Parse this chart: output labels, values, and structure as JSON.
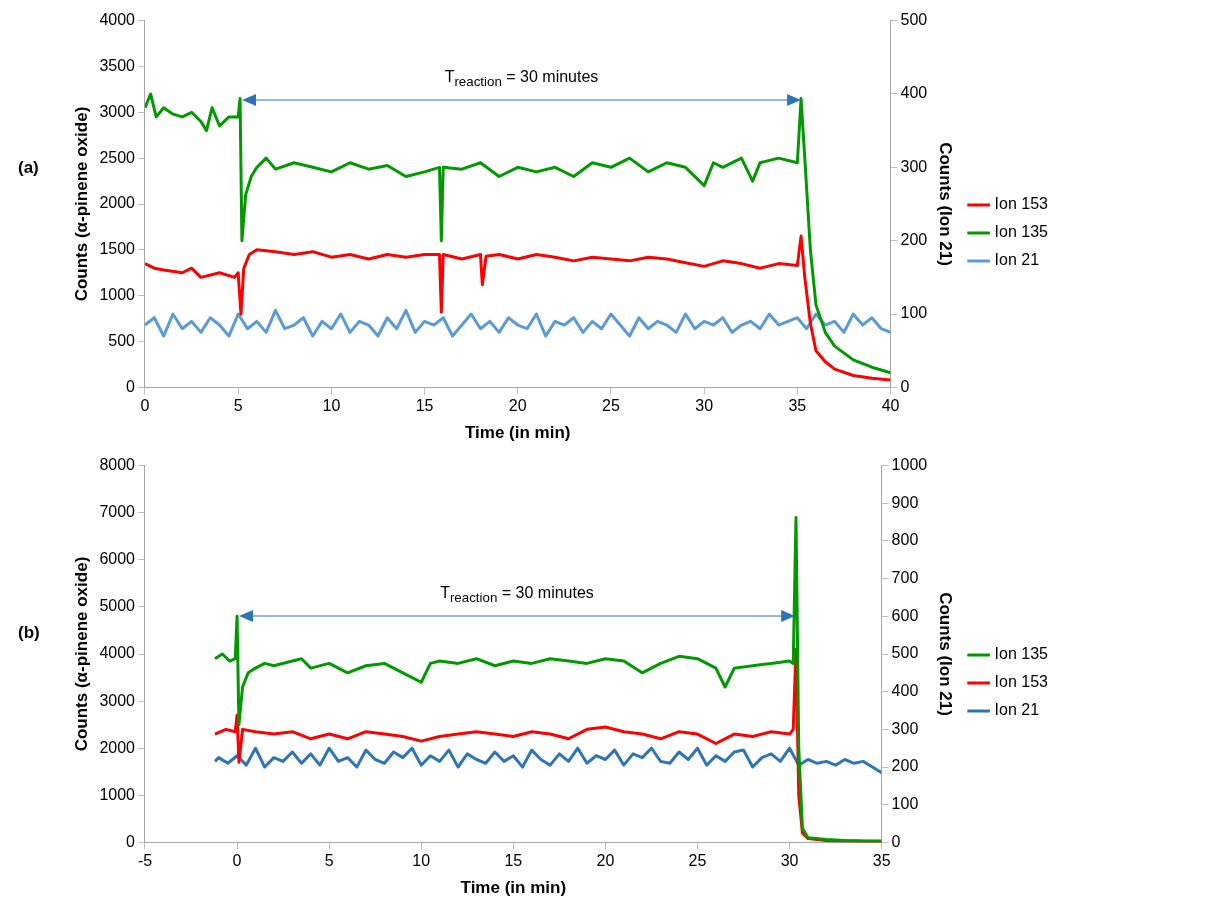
{
  "chart_data": [
    {
      "type": "line",
      "title": "(a)",
      "xlabel": "Time (in min)",
      "ylabel": "Counts (α-pinene oxide)",
      "y2label": "Counts (Ion 21)",
      "xlim": [
        0,
        40
      ],
      "xticks": [
        0,
        5,
        10,
        15,
        20,
        25,
        30,
        35,
        40
      ],
      "ylim": [
        0,
        4000
      ],
      "yticks": [
        0,
        500,
        1000,
        1500,
        2000,
        2500,
        3000,
        3500,
        4000
      ],
      "y2lim": [
        0,
        500
      ],
      "y2ticks": [
        0,
        100,
        200,
        300,
        400,
        500
      ],
      "legend": "right",
      "marker": "none",
      "annotations": [
        "T$_{reaction}$ = 30 minutes"
      ],
      "series": [
        {
          "name": "Ion 153",
          "color": "#ff0000",
          "x": [
            0,
            0.5,
            1,
            2,
            2.5,
            3,
            4,
            4.8,
            5,
            5.15,
            5.3,
            5.6,
            6,
            7,
            8,
            9,
            10,
            11,
            12,
            13,
            14,
            15,
            15.8,
            15.9,
            16,
            17,
            18,
            18.1,
            18.3,
            19,
            20,
            21,
            22,
            23,
            24,
            25,
            26,
            27,
            28,
            29,
            30,
            31,
            32,
            33,
            34,
            35,
            35.2,
            35.4,
            35.7,
            36,
            36.5,
            37,
            38,
            39,
            40
          ],
          "values": [
            1350,
            1300,
            1280,
            1250,
            1300,
            1200,
            1250,
            1200,
            1250,
            800,
            1300,
            1450,
            1500,
            1480,
            1450,
            1480,
            1420,
            1450,
            1400,
            1450,
            1420,
            1450,
            1450,
            820,
            1450,
            1400,
            1450,
            1120,
            1430,
            1450,
            1400,
            1450,
            1420,
            1380,
            1420,
            1400,
            1380,
            1420,
            1400,
            1360,
            1320,
            1380,
            1350,
            1300,
            1350,
            1330,
            1650,
            1200,
            700,
            400,
            280,
            200,
            130,
            100,
            80
          ]
        },
        {
          "name": "Ion 135",
          "color": "#009a00",
          "x": [
            0,
            0.3,
            0.6,
            1,
            1.5,
            2,
            2.5,
            3,
            3.3,
            3.6,
            4,
            4.5,
            5,
            5.1,
            5.2,
            5.4,
            5.7,
            6,
            6.5,
            7,
            8,
            9,
            10,
            11,
            12,
            13,
            14,
            15,
            15.8,
            15.9,
            16,
            17,
            18,
            19,
            20,
            21,
            22,
            23,
            24,
            25,
            26,
            27,
            28,
            29,
            30,
            30.5,
            31,
            32,
            32.6,
            33,
            34,
            35,
            35.2,
            35.4,
            35.7,
            36,
            36.5,
            37,
            38,
            39,
            40
          ],
          "values": [
            3050,
            3200,
            2950,
            3050,
            2980,
            2950,
            3000,
            2900,
            2800,
            3050,
            2850,
            2950,
            2950,
            3150,
            1600,
            2100,
            2300,
            2400,
            2500,
            2380,
            2450,
            2400,
            2350,
            2450,
            2380,
            2420,
            2300,
            2350,
            2400,
            1600,
            2400,
            2380,
            2450,
            2300,
            2400,
            2350,
            2400,
            2300,
            2450,
            2400,
            2500,
            2350,
            2450,
            2400,
            2200,
            2450,
            2400,
            2500,
            2250,
            2450,
            2500,
            2450,
            3150,
            2500,
            1500,
            900,
            600,
            450,
            300,
            220,
            160
          ]
        },
        {
          "name": "Ion 21",
          "color": "#5b9bd5",
          "axis": "y2",
          "x": [
            0,
            0.5,
            1,
            1.5,
            2,
            2.5,
            3,
            3.5,
            4,
            4.5,
            5,
            5.5,
            6,
            6.5,
            7,
            7.5,
            8,
            8.5,
            9,
            9.5,
            10,
            10.5,
            11,
            11.5,
            12,
            12.5,
            13,
            13.5,
            14,
            14.5,
            15,
            15.5,
            16,
            16.5,
            17,
            17.5,
            18,
            18.5,
            19,
            19.5,
            20,
            20.5,
            21,
            21.5,
            22,
            22.5,
            23,
            23.5,
            24,
            24.5,
            25,
            25.5,
            26,
            26.5,
            27,
            27.5,
            28,
            28.5,
            29,
            29.5,
            30,
            30.5,
            31,
            31.5,
            32,
            32.5,
            33,
            33.5,
            34,
            34.5,
            35,
            35.5,
            36,
            36.5,
            37,
            37.5,
            38,
            38.5,
            39,
            39.5,
            40
          ],
          "values": [
            85,
            95,
            70,
            100,
            80,
            90,
            75,
            95,
            85,
            70,
            100,
            80,
            90,
            75,
            105,
            80,
            85,
            95,
            70,
            90,
            80,
            100,
            75,
            90,
            85,
            70,
            95,
            80,
            105,
            75,
            90,
            85,
            95,
            70,
            85,
            100,
            80,
            90,
            75,
            95,
            85,
            80,
            100,
            70,
            90,
            85,
            95,
            75,
            90,
            80,
            100,
            85,
            70,
            95,
            80,
            90,
            85,
            75,
            100,
            80,
            90,
            85,
            95,
            75,
            85,
            90,
            80,
            100,
            85,
            90,
            95,
            80,
            100,
            85,
            90,
            75,
            100,
            85,
            95,
            80,
            75
          ]
        }
      ]
    },
    {
      "type": "line",
      "title": "(b)",
      "xlabel": "Time (in min)",
      "ylabel": "Counts (α-pinene oxide)",
      "y2label": "Counts (Ion 21)",
      "xlim": [
        -5,
        35
      ],
      "xticks": [
        -5,
        0,
        5,
        10,
        15,
        20,
        25,
        30,
        35
      ],
      "ylim": [
        0,
        8000
      ],
      "yticks": [
        0,
        1000,
        2000,
        3000,
        4000,
        5000,
        6000,
        7000,
        8000
      ],
      "y2lim": [
        0,
        1000
      ],
      "y2ticks": [
        0,
        100,
        200,
        300,
        400,
        500,
        600,
        700,
        800,
        900,
        1000
      ],
      "legend": "right",
      "marker": "none",
      "annotations": [
        "T$_{reaction}$ = 30 minutes"
      ],
      "series": [
        {
          "name": "Ion 135",
          "color": "#009a00",
          "x": [
            -1.2,
            -0.8,
            -0.4,
            -0.1,
            0,
            0.1,
            0.3,
            0.6,
            1,
            1.5,
            2,
            3,
            3.5,
            4,
            5,
            6,
            7,
            8,
            9,
            10,
            10.5,
            11,
            12,
            13,
            14,
            15,
            16,
            17,
            18,
            19,
            20,
            21,
            22,
            23,
            24,
            25,
            26,
            26.5,
            27,
            28,
            29,
            30,
            30.2,
            30.35,
            30.5,
            30.7,
            31,
            32,
            33,
            34,
            35
          ],
          "values": [
            3900,
            4000,
            3850,
            3900,
            4800,
            2500,
            3300,
            3600,
            3700,
            3800,
            3750,
            3850,
            3900,
            3700,
            3800,
            3600,
            3750,
            3800,
            3600,
            3400,
            3800,
            3850,
            3800,
            3900,
            3750,
            3850,
            3800,
            3900,
            3850,
            3800,
            3900,
            3850,
            3600,
            3800,
            3950,
            3900,
            3700,
            3300,
            3700,
            3750,
            3800,
            3850,
            3800,
            6900,
            2000,
            300,
            100,
            60,
            40,
            30,
            30
          ]
        },
        {
          "name": "Ion 153",
          "color": "#ff0000",
          "x": [
            -1.2,
            -0.6,
            -0.1,
            0,
            0.1,
            0.3,
            1,
            2,
            3,
            4,
            5,
            6,
            7,
            8,
            9,
            10,
            11,
            12,
            13,
            14,
            15,
            16,
            17,
            18,
            19,
            20,
            21,
            22,
            23,
            24,
            25,
            26,
            27,
            28,
            29,
            30,
            30.2,
            30.35,
            30.5,
            30.7,
            31,
            32,
            33,
            35
          ],
          "values": [
            2300,
            2400,
            2350,
            2700,
            1700,
            2400,
            2350,
            2300,
            2350,
            2200,
            2300,
            2200,
            2350,
            2300,
            2250,
            2150,
            2250,
            2300,
            2350,
            2300,
            2250,
            2350,
            2300,
            2200,
            2400,
            2450,
            2350,
            2300,
            2200,
            2350,
            2300,
            2100,
            2300,
            2250,
            2350,
            2300,
            2400,
            4100,
            1000,
            200,
            80,
            40,
            30,
            20
          ]
        },
        {
          "name": "Ion 21",
          "color": "#2e75b6",
          "axis": "y2",
          "x": [
            -1.2,
            -1,
            -0.5,
            0,
            0.5,
            1,
            1.5,
            2,
            2.5,
            3,
            3.5,
            4,
            4.5,
            5,
            5.5,
            6,
            6.5,
            7,
            7.5,
            8,
            8.5,
            9,
            9.5,
            10,
            10.5,
            11,
            11.5,
            12,
            12.5,
            13,
            13.5,
            14,
            14.5,
            15,
            15.5,
            16,
            16.5,
            17,
            17.5,
            18,
            18.5,
            19,
            19.5,
            20,
            20.5,
            21,
            21.5,
            22,
            22.5,
            23,
            23.5,
            24,
            24.5,
            25,
            25.5,
            26,
            26.5,
            27,
            27.5,
            28,
            28.5,
            29,
            29.5,
            30,
            30.5,
            31,
            31.5,
            32,
            32.5,
            33,
            33.5,
            34,
            34.5,
            35
          ],
          "values": [
            215,
            225,
            210,
            230,
            205,
            250,
            200,
            225,
            215,
            240,
            210,
            235,
            205,
            250,
            215,
            225,
            200,
            245,
            220,
            210,
            240,
            225,
            250,
            205,
            230,
            215,
            245,
            200,
            235,
            220,
            210,
            240,
            215,
            230,
            200,
            245,
            220,
            205,
            235,
            215,
            250,
            210,
            230,
            220,
            245,
            205,
            235,
            225,
            250,
            215,
            210,
            240,
            220,
            250,
            205,
            230,
            215,
            240,
            245,
            200,
            225,
            235,
            215,
            250,
            205,
            220,
            210,
            215,
            205,
            220,
            210,
            215,
            200,
            185
          ]
        }
      ]
    }
  ]
}
